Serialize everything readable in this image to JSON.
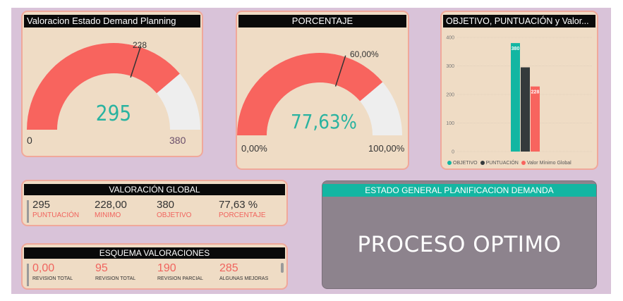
{
  "colors": {
    "background": "#d9c3d9",
    "card": "#efdcc5",
    "card_border": "#f0a89a",
    "gauge_fill": "#f8645e",
    "gauge_track": "#eeeeee",
    "gauge_value": "#2ab3a0",
    "teal": "#13b6a2",
    "dark": "#343a3c",
    "estado_bg": "#8d838d"
  },
  "gauge_demand": {
    "title": "Valoracion Estado Demand Planning",
    "value": 295,
    "value_label": "295",
    "target": 228,
    "target_label": "228",
    "min": 0,
    "max": 380,
    "min_label": "0",
    "max_label": "380"
  },
  "gauge_porcentaje": {
    "title": "PORCENTAJE",
    "value": 77.63,
    "value_label": "77,63%",
    "target": 60,
    "target_label": "60,00%",
    "min": 0,
    "max": 100,
    "min_label": "0,00%",
    "max_label": "100,00%"
  },
  "bar_chart_card": {
    "title": "OBJETIVO, PUNTUACIÓN y Valor..."
  },
  "chart_data": {
    "type": "bar",
    "title": "OBJETIVO, PUNTUACIÓN y Valor...",
    "categories": [
      ""
    ],
    "series": [
      {
        "name": "OBJETIVO",
        "values": [
          380
        ],
        "color": "#13b6a2",
        "data_label": "380"
      },
      {
        "name": "PUNTUACIÓN",
        "values": [
          295
        ],
        "color": "#343a3c",
        "data_label": ""
      },
      {
        "name": "Valor Mínimo Global",
        "values": [
          228
        ],
        "color": "#f8645e",
        "data_label": "228"
      }
    ],
    "yticks": [
      "0",
      "100",
      "200",
      "300",
      "400"
    ],
    "ylim": [
      0,
      400
    ],
    "grid": true,
    "legend": "bottom"
  },
  "valoracion_global": {
    "title": "VALORACIÓN GLOBAL",
    "items": [
      {
        "value": "295",
        "label": "PUNTUACIÓN"
      },
      {
        "value": "228,00",
        "label": "MINIMO"
      },
      {
        "value": "380",
        "label": "OBJETIVO"
      },
      {
        "value": "77,63 %",
        "label": "PORCENTAJE"
      }
    ]
  },
  "esquema": {
    "title": "ESQUEMA VALORACIONES",
    "items": [
      {
        "value": "0,00",
        "label": "REVISION TOTAL"
      },
      {
        "value": "95",
        "label": "REVISION TOTAL"
      },
      {
        "value": "190",
        "label": "REVISION PARCIAL"
      },
      {
        "value": "285",
        "label": "ALGUNAS MEJORAS"
      }
    ]
  },
  "estado": {
    "header": "ESTADO GENERAL PLANIFICACION DEMANDA",
    "status": "PROCESO OPTIMO"
  }
}
